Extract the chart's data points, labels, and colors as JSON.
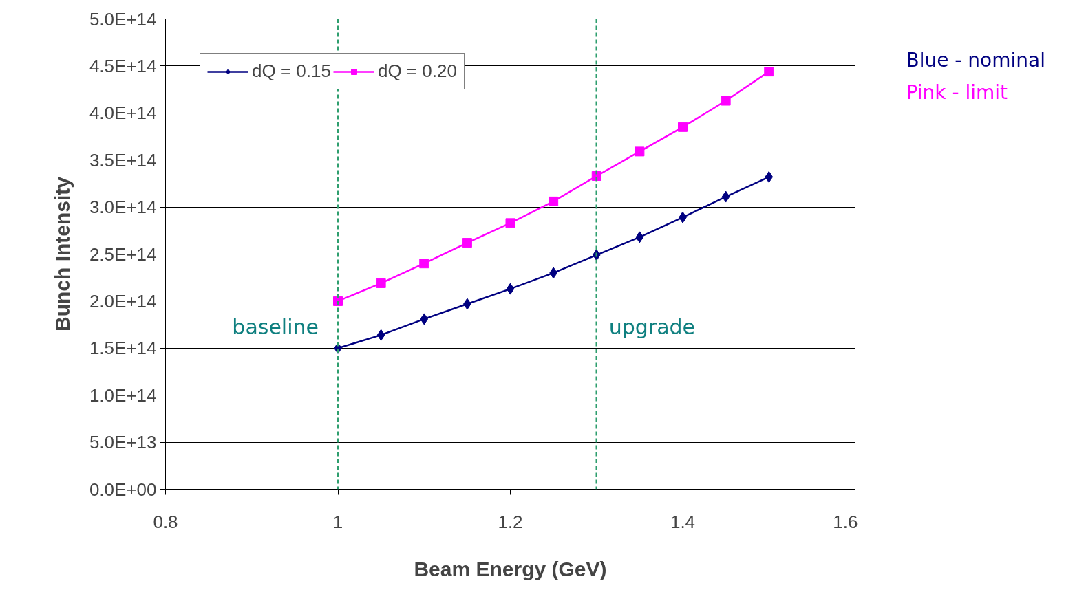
{
  "chart_data": {
    "type": "line",
    "xlabel": "Beam Energy (GeV)",
    "ylabel": "Bunch Intensity",
    "x": [
      1.0,
      1.05,
      1.1,
      1.15,
      1.2,
      1.25,
      1.3,
      1.35,
      1.4,
      1.45,
      1.5
    ],
    "series": [
      {
        "name": "dQ = 0.15",
        "color": "#000080",
        "marker": "diamond",
        "values": [
          150000000000000.0,
          164000000000000.0,
          181000000000000.0,
          197000000000000.0,
          213000000000000.0,
          230000000000000.0,
          249000000000000.0,
          268000000000000.0,
          289000000000000.0,
          311000000000000.0,
          332000000000000.0
        ]
      },
      {
        "name": "dQ = 0.20",
        "color": "#ff00ff",
        "marker": "square",
        "values": [
          200000000000000.0,
          219000000000000.0,
          240000000000000.0,
          262000000000000.0,
          283000000000000.0,
          306000000000000.0,
          333000000000000.0,
          359000000000000.0,
          385000000000000.0,
          413000000000000.0,
          444000000000000.0
        ]
      }
    ],
    "xlim": [
      0.8,
      1.6
    ],
    "xticks": [
      0.8,
      1,
      1.2,
      1.4,
      1.6
    ],
    "ylim": [
      0,
      500000000000000.0
    ],
    "yticks": [
      {
        "value": 0,
        "label": "0.0E+00"
      },
      {
        "value": 50000000000000.0,
        "label": "5.0E+13"
      },
      {
        "value": 100000000000000.0,
        "label": "1.0E+14"
      },
      {
        "value": 150000000000000.0,
        "label": "1.5E+14"
      },
      {
        "value": 200000000000000.0,
        "label": "2.0E+14"
      },
      {
        "value": 250000000000000.0,
        "label": "2.5E+14"
      },
      {
        "value": 300000000000000.0,
        "label": "3.0E+14"
      },
      {
        "value": 350000000000000.0,
        "label": "3.5E+14"
      },
      {
        "value": 400000000000000.0,
        "label": "4.0E+14"
      },
      {
        "value": 450000000000000.0,
        "label": "4.5E+14"
      },
      {
        "value": 500000000000000.0,
        "label": "5.0E+14"
      }
    ],
    "ref_lines": [
      {
        "axis": "x",
        "value": 1.0,
        "color": "#2e9e6e",
        "line_style": "dashed"
      },
      {
        "axis": "x",
        "value": 1.3,
        "color": "#2e9e6e",
        "line_style": "dashed"
      }
    ],
    "annotations": [
      "baseline",
      "upgrade",
      "Blue - nominal",
      "Pink - limit"
    ],
    "grid": "y",
    "legend": "top left",
    "line_style": "solid"
  }
}
